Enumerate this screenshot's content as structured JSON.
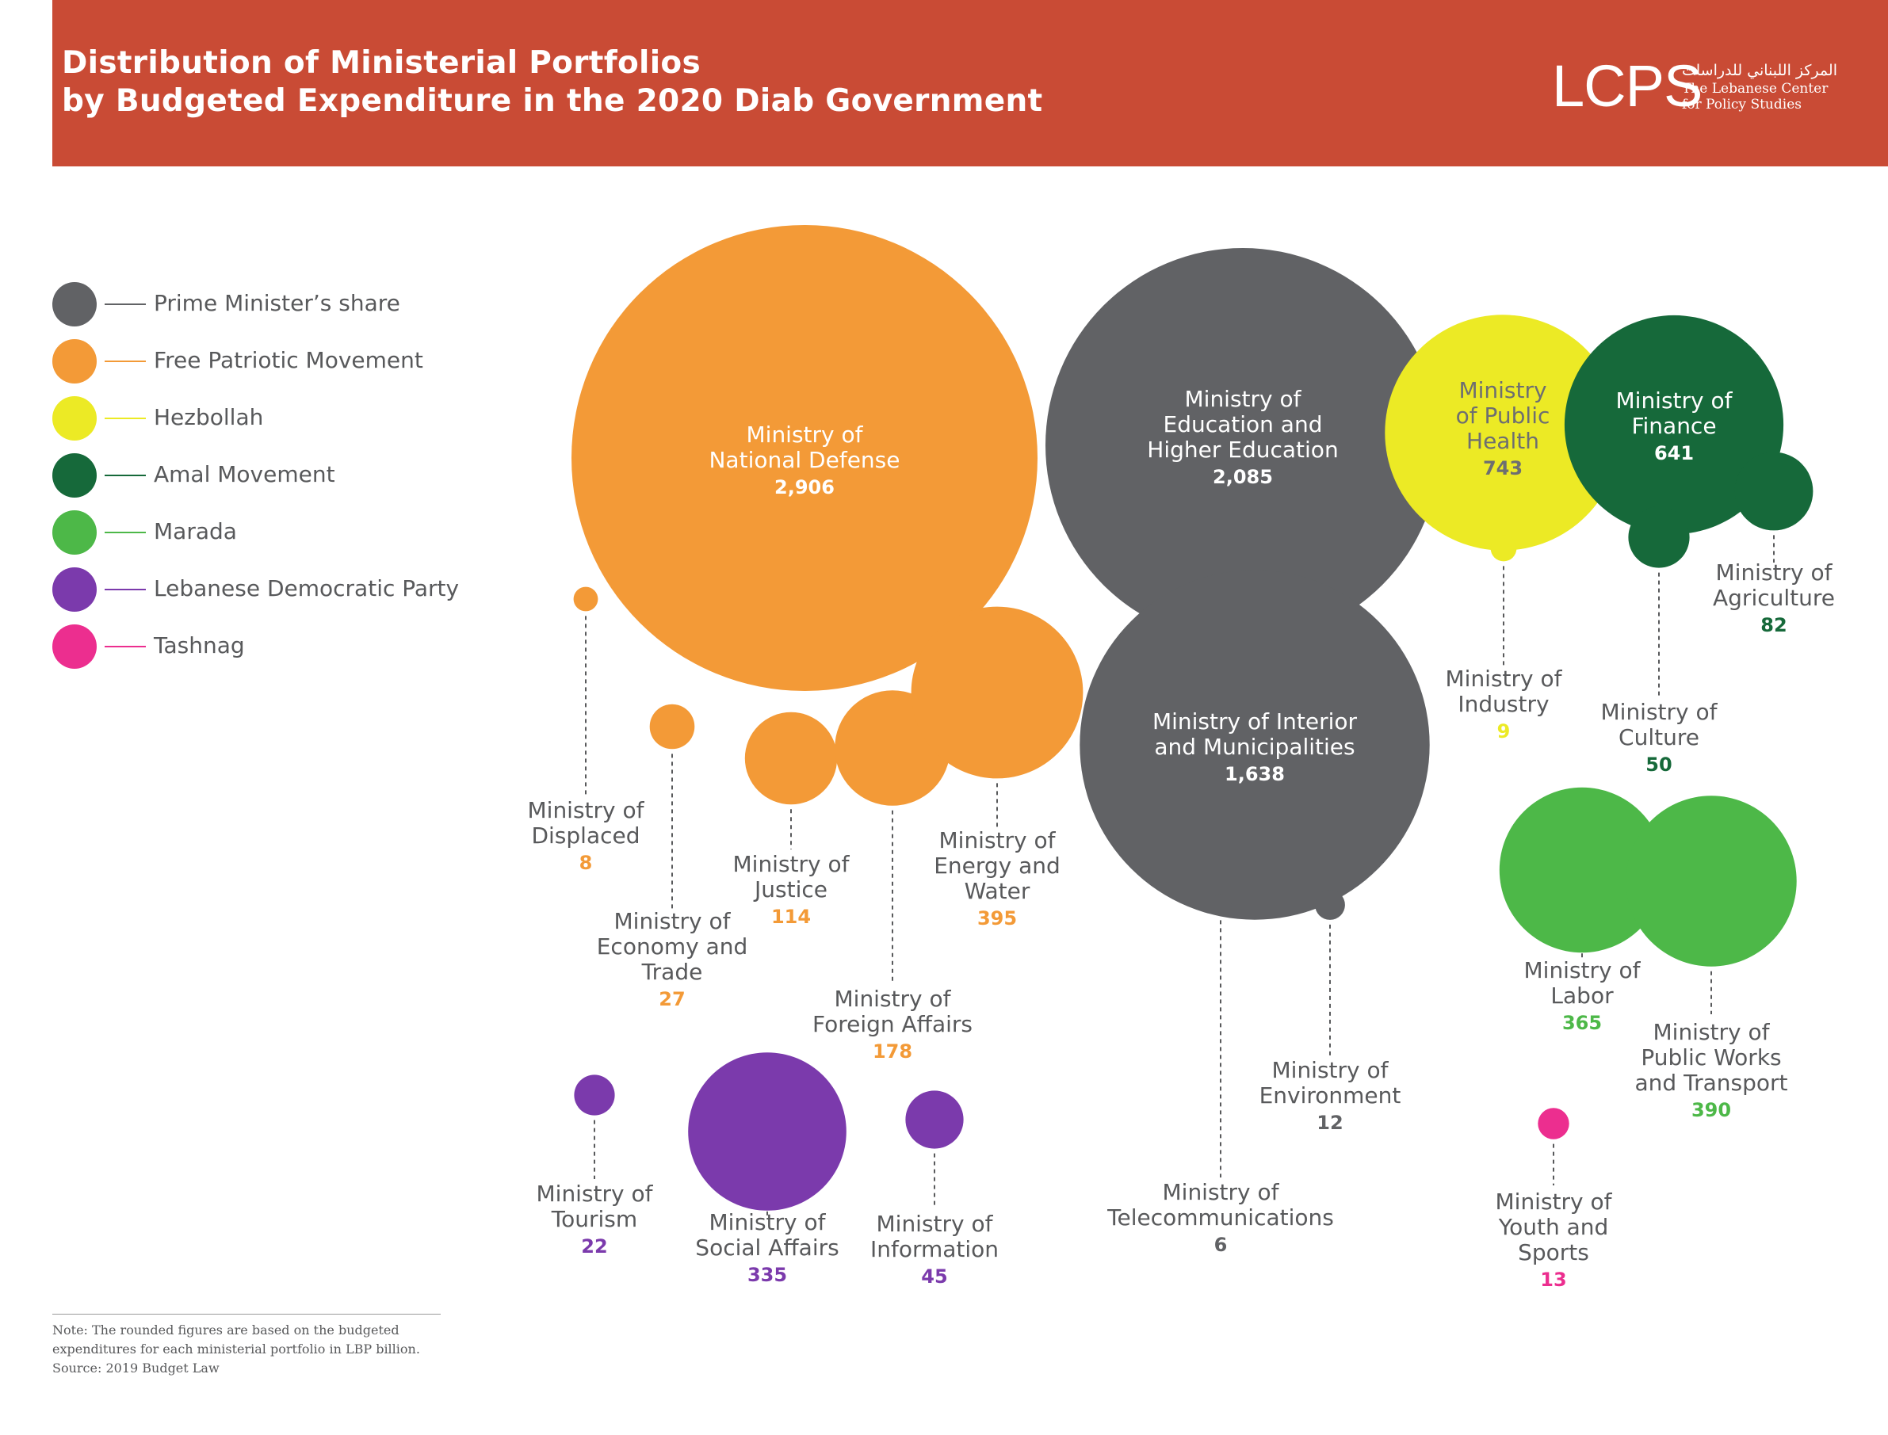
{
  "header": {
    "title_line1": "Distribution of Ministerial Portfolios",
    "title_line2": "by Budgeted Expenditure in the 2020 Diab Government",
    "logo": {
      "mark": "LCPS",
      "arabic": "المركز اللبناني للدراسات",
      "english_line1": "The Lebanese Center",
      "english_line2": "for Policy Studies"
    }
  },
  "legend": [
    {
      "label": "Prime Minister’s share",
      "color": "#616265"
    },
    {
      "label": "Free Patriotic Movement",
      "color": "#f39a37"
    },
    {
      "label": "Hezbollah",
      "color": "#ecea25"
    },
    {
      "label": "Amal Movement",
      "color": "#16693a"
    },
    {
      "label": "Marada",
      "color": "#4db848"
    },
    {
      "label": "Lebanese Democratic Party",
      "color": "#7b3aac"
    },
    {
      "label": "Tashnag",
      "color": "#ec2e8f"
    }
  ],
  "note": {
    "line1": "Note: The rounded figures are based on the budgeted",
    "line2": "expenditures for each ministerial portfolio in LBP billion.",
    "line3": "Source: 2019 Budget Law"
  },
  "chart_data": {
    "type": "bubble",
    "unit": "LBP billion",
    "series_colors": {
      "Prime Minister’s share": "#616265",
      "Free Patriotic Movement": "#f39a37",
      "Hezbollah": "#ecea25",
      "Amal Movement": "#16693a",
      "Marada": "#4db848",
      "Lebanese Democratic Party": "#7b3aac",
      "Tashnag": "#ec2e8f"
    },
    "points": [
      {
        "name": "Ministry of\nNational Defense",
        "value": 2906,
        "value_label": "2,906",
        "party": "Free Patriotic Movement"
      },
      {
        "name": "Ministry of\nEducation and\nHigher Education",
        "value": 2085,
        "value_label": "2,085",
        "party": "Prime Minister’s share"
      },
      {
        "name": "Ministry of Interior\nand Municipalities",
        "value": 1638,
        "value_label": "1,638",
        "party": "Prime Minister’s share"
      },
      {
        "name": "Ministry\nof Public\nHealth",
        "value": 743,
        "value_label": "743",
        "party": "Hezbollah"
      },
      {
        "name": "Ministry of\nFinance",
        "value": 641,
        "value_label": "641",
        "party": "Amal Movement"
      },
      {
        "name": "Ministry of\nAgriculture",
        "value": 82,
        "value_label": "82",
        "party": "Amal Movement"
      },
      {
        "name": "Ministry of\nIndustry",
        "value": 9,
        "value_label": "9",
        "party": "Hezbollah"
      },
      {
        "name": "Ministry of\nCulture",
        "value": 50,
        "value_label": "50",
        "party": "Amal Movement"
      },
      {
        "name": "Ministry of\nDisplaced",
        "value": 8,
        "value_label": "8",
        "party": "Free Patriotic Movement"
      },
      {
        "name": "Ministry of\nEconomy and\nTrade",
        "value": 27,
        "value_label": "27",
        "party": "Free Patriotic Movement"
      },
      {
        "name": "Ministry of\nJustice",
        "value": 114,
        "value_label": "114",
        "party": "Free Patriotic Movement"
      },
      {
        "name": "Ministry of\nForeign Affairs",
        "value": 178,
        "value_label": "178",
        "party": "Free Patriotic Movement"
      },
      {
        "name": "Ministry of\nEnergy and\nWater",
        "value": 395,
        "value_label": "395",
        "party": "Free Patriotic Movement"
      },
      {
        "name": "Ministry of\nTelecommunications",
        "value": 6,
        "value_label": "6",
        "party": "Prime Minister’s share"
      },
      {
        "name": "Ministry of\nEnvironment",
        "value": 12,
        "value_label": "12",
        "party": "Prime Minister’s share"
      },
      {
        "name": "Ministry of\nLabor",
        "value": 365,
        "value_label": "365",
        "party": "Marada"
      },
      {
        "name": "Ministry of\nPublic Works\nand Transport",
        "value": 390,
        "value_label": "390",
        "party": "Marada"
      },
      {
        "name": "Ministry of\nYouth and\nSports",
        "value": 13,
        "value_label": "13",
        "party": "Tashnag"
      },
      {
        "name": "Ministry of\nTourism",
        "value": 22,
        "value_label": "22",
        "party": "Lebanese Democratic Party"
      },
      {
        "name": "Ministry of\nSocial Affairs",
        "value": 335,
        "value_label": "335",
        "party": "Lebanese Democratic Party"
      },
      {
        "name": "Ministry of\nInformation",
        "value": 45,
        "value_label": "45",
        "party": "Lebanese Democratic Party"
      }
    ]
  }
}
